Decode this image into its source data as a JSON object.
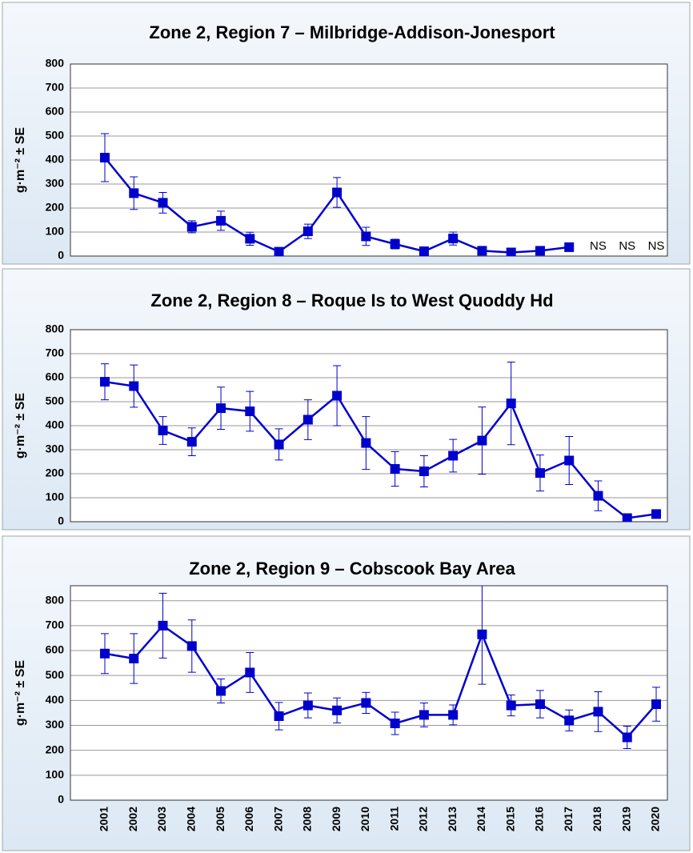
{
  "chart_data": [
    {
      "type": "line",
      "title": "Zone 2, Region 7 – Milbridge-Addison-Jonesport",
      "y_label": "g·m⁻² ± SE",
      "ylim": [
        0,
        800
      ],
      "yticks": [
        0,
        100,
        200,
        300,
        400,
        500,
        600,
        700,
        800
      ],
      "grid": true,
      "series": [
        {
          "color": "#0000cc",
          "values": [
            410,
            262,
            222,
            122,
            147,
            72,
            18,
            103,
            265,
            82,
            50,
            20,
            73,
            22,
            15,
            22,
            37,
            null,
            null,
            null
          ],
          "errors": [
            100,
            68,
            43,
            25,
            40,
            27,
            5,
            30,
            62,
            38,
            20,
            5,
            27,
            5,
            3,
            5,
            5,
            null,
            null,
            null
          ],
          "value_labels": [
            null,
            null,
            null,
            null,
            null,
            null,
            null,
            null,
            null,
            null,
            null,
            null,
            null,
            null,
            null,
            null,
            null,
            "NS",
            "NS",
            "NS"
          ]
        }
      ]
    },
    {
      "type": "line",
      "title": "Zone 2, Region 8 – Roque Is to West Quoddy Hd",
      "y_label": "g·m⁻² ± SE",
      "ylim": [
        0,
        800
      ],
      "yticks": [
        0,
        100,
        200,
        300,
        400,
        500,
        600,
        700,
        800
      ],
      "grid": true,
      "series": [
        {
          "color": "#0000cc",
          "values": [
            583,
            565,
            380,
            333,
            473,
            460,
            322,
            425,
            525,
            328,
            220,
            210,
            275,
            338,
            493,
            203,
            255,
            108,
            15,
            32
          ],
          "errors": [
            75,
            88,
            58,
            58,
            88,
            83,
            65,
            83,
            125,
            110,
            72,
            65,
            68,
            140,
            172,
            75,
            100,
            62,
            5,
            5
          ]
        }
      ]
    },
    {
      "type": "line",
      "title": "Zone 2, Region 9 – Cobscook Bay Area",
      "y_label": "g·m⁻² ± SE",
      "categories": [
        "2001",
        "2002",
        "2003",
        "2004",
        "2005",
        "2006",
        "2007",
        "2008",
        "2009",
        "2010",
        "2011",
        "2012",
        "2013",
        "2014",
        "2015",
        "2016",
        "2017",
        "2018",
        "2019",
        "2020"
      ],
      "ylim": [
        0,
        860
      ],
      "yticks": [
        0,
        100,
        200,
        300,
        400,
        500,
        600,
        700,
        800
      ],
      "grid": true,
      "series": [
        {
          "color": "#0000cc",
          "values": [
            588,
            568,
            700,
            618,
            438,
            512,
            337,
            380,
            360,
            390,
            308,
            342,
            342,
            665,
            380,
            385,
            320,
            355,
            252,
            385
          ],
          "errors": [
            80,
            100,
            130,
            105,
            48,
            80,
            55,
            50,
            50,
            42,
            45,
            48,
            40,
            200,
            42,
            55,
            42,
            80,
            45,
            68
          ]
        }
      ]
    }
  ]
}
